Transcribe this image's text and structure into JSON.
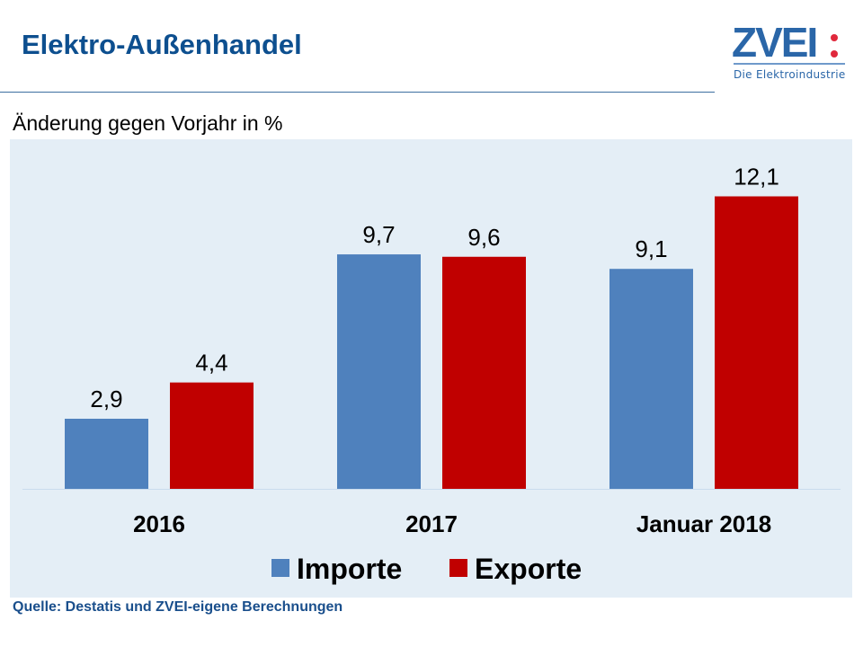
{
  "header": {
    "title": "Elektro-Außenhandel",
    "logo_text": "ZVEI:",
    "logo_subtitle": "Die Elektroindustrie"
  },
  "subtitle": "Änderung gegen Vorjahr in %",
  "source": "Quelle: Destatis und ZVEI-eigene Berechnungen",
  "chart_data": {
    "type": "bar",
    "categories": [
      "2016",
      "2017",
      "Januar 2018"
    ],
    "series": [
      {
        "name": "Importe",
        "values": [
          2.9,
          9.7,
          9.1
        ],
        "labels": [
          "2,9",
          "9,7",
          "9,1"
        ],
        "color": "#4f81bd"
      },
      {
        "name": "Exporte",
        "values": [
          4.4,
          9.6,
          12.1
        ],
        "labels": [
          "4,4",
          "9,6",
          "12,1"
        ],
        "color": "#c00000"
      }
    ],
    "ylabel": "Änderung gegen Vorjahr in %",
    "ylim": [
      0,
      13
    ],
    "grid": false,
    "legend": "bottom"
  }
}
